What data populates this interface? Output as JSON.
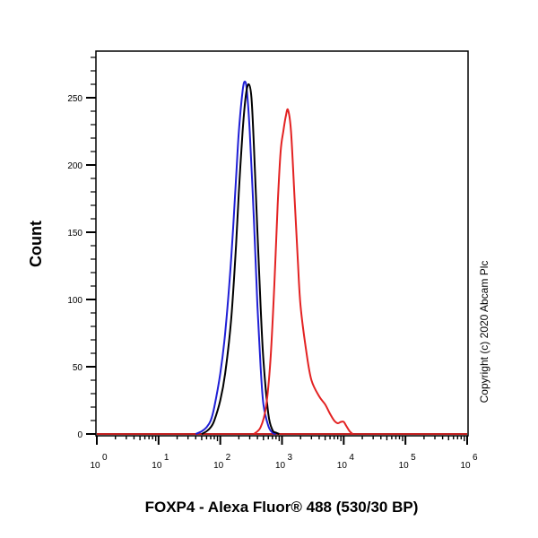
{
  "chart_data": {
    "type": "line",
    "title": "",
    "xlabel": "FOXP4 - Alexa Fluor® 488 (530/30 BP)",
    "ylabel": "Count",
    "xscale": "log",
    "xlim": [
      1,
      1000000
    ],
    "ylim": [
      0,
      280
    ],
    "x_ticks": [
      "10^0",
      "10^1",
      "10^2",
      "10^3",
      "10^4",
      "10^5",
      "10^6"
    ],
    "x_tick_labels": [
      {
        "base": "10",
        "exp": "0"
      },
      {
        "base": "10",
        "exp": "1"
      },
      {
        "base": "10",
        "exp": "2"
      },
      {
        "base": "10",
        "exp": "3"
      },
      {
        "base": "10",
        "exp": "4"
      },
      {
        "base": "10",
        "exp": "5"
      },
      {
        "base": "10",
        "exp": "6"
      }
    ],
    "y_ticks": [
      0,
      50,
      100,
      150,
      200,
      250
    ],
    "grid": false,
    "legend": null,
    "annotation": "Copyright (c) 2020 Abcam Plc",
    "series": [
      {
        "name": "blue",
        "color": "#1f1fd6",
        "x": [
          40,
          50,
          60,
          70,
          80,
          100,
          120,
          150,
          180,
          200,
          230,
          250,
          270,
          300,
          350,
          400,
          450,
          500,
          600,
          700,
          800
        ],
        "y": [
          0,
          2,
          5,
          10,
          20,
          45,
          75,
          130,
          190,
          225,
          255,
          262,
          255,
          225,
          160,
          95,
          50,
          22,
          6,
          1,
          0
        ]
      },
      {
        "name": "black",
        "color": "#000000",
        "x": [
          50,
          60,
          70,
          80,
          100,
          120,
          150,
          180,
          200,
          230,
          260,
          290,
          320,
          350,
          400,
          450,
          500,
          600,
          700,
          800,
          900
        ],
        "y": [
          0,
          2,
          5,
          10,
          25,
          45,
          85,
          140,
          180,
          225,
          252,
          260,
          250,
          215,
          150,
          95,
          55,
          15,
          3,
          1,
          0
        ]
      },
      {
        "name": "red",
        "color": "#e32222",
        "x": [
          350,
          450,
          550,
          650,
          750,
          850,
          950,
          1050,
          1150,
          1250,
          1400,
          1600,
          1800,
          2000,
          2500,
          3000,
          4000,
          5000,
          6000,
          7000,
          8000,
          9000,
          10000,
          11000,
          12500,
          14000
        ],
        "y": [
          0,
          5,
          20,
          55,
          110,
          170,
          210,
          225,
          236,
          241,
          225,
          175,
          130,
          95,
          60,
          40,
          28,
          22,
          15,
          10,
          8,
          9,
          9,
          6,
          2,
          0
        ]
      }
    ]
  },
  "axes": {
    "y_tick_labels": [
      "0",
      "50",
      "100",
      "150",
      "200",
      "250"
    ],
    "xlabel": "FOXP4 - Alexa Fluor® 488 (530/30 BP)",
    "ylabel": "Count"
  },
  "copyright": "Copyright (c) 2020 Abcam Plc"
}
